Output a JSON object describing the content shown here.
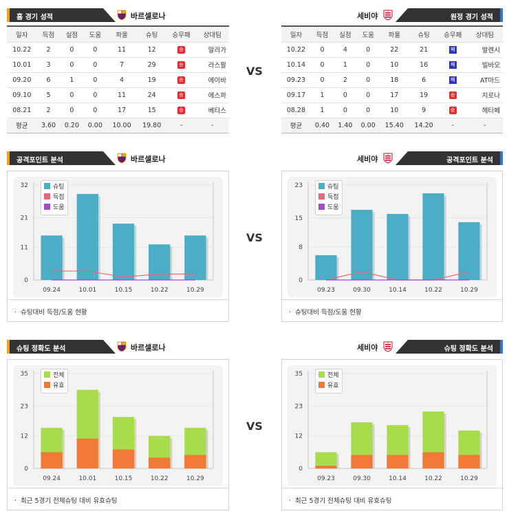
{
  "vs_label": "VS",
  "home_team": "바르셀로나",
  "away_team": "세비야",
  "home_record": {
    "title": "홈 경기 성적",
    "headers": [
      "일자",
      "득점",
      "실점",
      "도움",
      "파울",
      "슈팅",
      "승무패",
      "상대팀"
    ],
    "rows": [
      {
        "date": "10.22",
        "gf": "2",
        "ga": "0",
        "ast": "0",
        "foul": "11",
        "shot": "12",
        "res": "승",
        "opp": "말리가"
      },
      {
        "date": "10.01",
        "gf": "3",
        "ga": "0",
        "ast": "0",
        "foul": "7",
        "shot": "29",
        "res": "승",
        "opp": "라스팔"
      },
      {
        "date": "09.20",
        "gf": "6",
        "ga": "1",
        "ast": "0",
        "foul": "4",
        "shot": "19",
        "res": "승",
        "opp": "에이바"
      },
      {
        "date": "09.10",
        "gf": "5",
        "ga": "0",
        "ast": "0",
        "foul": "11",
        "shot": "24",
        "res": "승",
        "opp": "에스파"
      },
      {
        "date": "08.21",
        "gf": "2",
        "ga": "0",
        "ast": "0",
        "foul": "17",
        "shot": "15",
        "res": "승",
        "opp": "베티스"
      }
    ],
    "avg": [
      "평균",
      "3.60",
      "0.20",
      "0.00",
      "10.00",
      "19.80",
      "-",
      "-"
    ]
  },
  "away_record": {
    "title": "원정 경기 성적",
    "headers": [
      "일자",
      "득점",
      "실점",
      "도움",
      "파울",
      "슈팅",
      "승무패",
      "상대팀"
    ],
    "rows": [
      {
        "date": "10.22",
        "gf": "0",
        "ga": "4",
        "ast": "0",
        "foul": "22",
        "shot": "21",
        "res": "패",
        "opp": "발렌시"
      },
      {
        "date": "10.14",
        "gf": "0",
        "ga": "1",
        "ast": "0",
        "foul": "10",
        "shot": "16",
        "res": "패",
        "opp": "빌바오"
      },
      {
        "date": "09.23",
        "gf": "0",
        "ga": "2",
        "ast": "0",
        "foul": "18",
        "shot": "6",
        "res": "패",
        "opp": "AT마드"
      },
      {
        "date": "09.17",
        "gf": "1",
        "ga": "0",
        "ast": "0",
        "foul": "17",
        "shot": "19",
        "res": "승",
        "opp": "지로나"
      },
      {
        "date": "08.28",
        "gf": "1",
        "ga": "0",
        "ast": "0",
        "foul": "10",
        "shot": "9",
        "res": "승",
        "opp": "헤타페"
      }
    ],
    "avg": [
      "평균",
      "0.40",
      "1.40",
      "0.00",
      "15.40",
      "14.20",
      "-",
      "-"
    ]
  },
  "attack": {
    "title": "공격포인트 분석",
    "footer": "슈팅대비 득점/도움 현황",
    "legend": [
      "슈팅",
      "득점",
      "도움"
    ]
  },
  "accuracy": {
    "title": "슈팅 정확도 분석",
    "footer": "최근 5경기 전체슈팅 대비 유효슈팅",
    "legend": [
      "전체",
      "유효"
    ]
  },
  "colors": {
    "shot": "#4badc6",
    "goal": "#e8677c",
    "assist": "#9b4fc9",
    "total": "#a9dc4c",
    "on_target": "#f07a35",
    "header": "#333333",
    "home_accent": "#f0a020",
    "away_accent": "#3a6fd8"
  },
  "chart_data": [
    {
      "type": "bar",
      "categories": [
        "09.24",
        "10.01",
        "10.15",
        "10.22",
        "10.29"
      ],
      "ylim": [
        0,
        32
      ],
      "yticks": [
        0,
        11,
        21,
        32
      ],
      "series": [
        {
          "name": "슈팅",
          "values": [
            15,
            29,
            19,
            12,
            15
          ]
        },
        {
          "name": "득점",
          "values": [
            3,
            3,
            1,
            2,
            2
          ]
        },
        {
          "name": "도움",
          "values": [
            0,
            0,
            0,
            0,
            0
          ]
        }
      ]
    },
    {
      "type": "bar",
      "categories": [
        "09.23",
        "09.30",
        "10.14",
        "10.22",
        "10.29"
      ],
      "ylim": [
        0,
        23
      ],
      "yticks": [
        0,
        8,
        15,
        23
      ],
      "series": [
        {
          "name": "슈팅",
          "values": [
            6,
            17,
            16,
            21,
            14
          ]
        },
        {
          "name": "득점",
          "values": [
            0,
            2,
            0,
            0,
            2
          ]
        },
        {
          "name": "도움",
          "values": [
            0,
            0,
            0,
            0,
            0
          ]
        }
      ]
    },
    {
      "type": "bar",
      "categories": [
        "09.24",
        "10.01",
        "10.15",
        "10.22",
        "10.29"
      ],
      "ylim": [
        0,
        35
      ],
      "yticks": [
        0,
        12,
        23,
        35
      ],
      "series": [
        {
          "name": "전체",
          "values": [
            15,
            29,
            19,
            12,
            15
          ]
        },
        {
          "name": "유효",
          "values": [
            6,
            11,
            7,
            4,
            5
          ]
        }
      ]
    },
    {
      "type": "bar",
      "categories": [
        "09.23",
        "09.30",
        "10.14",
        "10.22",
        "10.29"
      ],
      "ylim": [
        0,
        35
      ],
      "yticks": [
        0,
        12,
        23,
        35
      ],
      "series": [
        {
          "name": "전체",
          "values": [
            6,
            17,
            16,
            21,
            14
          ]
        },
        {
          "name": "유효",
          "values": [
            1,
            5,
            5,
            6,
            5
          ]
        }
      ]
    }
  ]
}
